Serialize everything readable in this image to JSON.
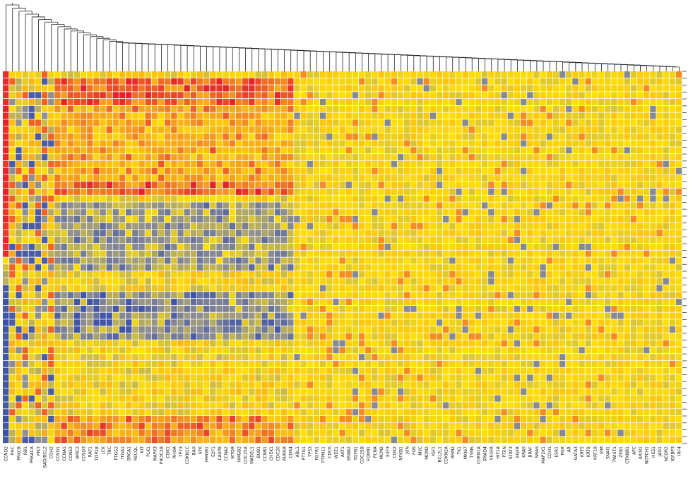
{
  "chart_data": {
    "type": "heatmap",
    "title": "",
    "xlabel": "",
    "ylabel": "",
    "dendrogram": "top",
    "color_scale": {
      "min_color": "#3a4fa8",
      "low_color": "#8f8f8f",
      "mid_color": "#ffe000",
      "high_color": "#f59a1e",
      "max_color": "#e8202a"
    },
    "rows": 54,
    "columns": [
      "CCND2",
      "PHC",
      "PRKCB",
      "RB1",
      "PRKACA",
      "PIK3",
      "BAD/BCL2",
      "CDH2",
      "CCND1",
      "CCNA1",
      "CCNE2",
      "BIRC2",
      "CCND3",
      "RAF1",
      "TOP2A",
      "LCK",
      "TNC",
      "PTGS2",
      "ITGA1",
      "BRCA1",
      "RECQL",
      "KIT",
      "PLK1",
      "MAPK3",
      "PIK3C2B",
      "CDK1",
      "RHOA",
      "TP73",
      "CDKN1C",
      "BAX",
      "SYK",
      "HMGB1",
      "E2F1",
      "CASP8",
      "CCNA2",
      "MTOR",
      "HMGB2",
      "CDC25A",
      "MAD2L1",
      "BUB1",
      "CCNB1",
      "CHEK1",
      "CDC20",
      "AURKA",
      "CDK4",
      "ABL1",
      "PTTG1",
      "TP53",
      "FGFR1",
      "PTPN11",
      "CDC6",
      "WEE1",
      "AKT1",
      "ERBB2",
      "TGFB1",
      "CDC25B",
      "FOXM1",
      "PCNA",
      "MCM2",
      "E2F3",
      "CDK2",
      "NFKB1",
      "JUN",
      "FOS",
      "MYC",
      "MDM2",
      "IGF1",
      "BCL2L1",
      "CDKN2A",
      "RRM2",
      "TK1",
      "MKI67",
      "TYMS",
      "CDKN1A",
      "SMAD4",
      "VEGFA",
      "HIF1A",
      "PTEN",
      "STAT3",
      "EGFR",
      "KRAS",
      "BRAF",
      "NRAS",
      "MAP2K1",
      "CDH1",
      "ESR1",
      "PGR",
      "AR",
      "GATA3",
      "KRT5",
      "KRT8",
      "KRT18",
      "VIM",
      "SNAI1",
      "TWIST1",
      "ZEB1",
      "CTNNB1",
      "APC",
      "AXIN1",
      "NOTCH1",
      "HES1",
      "JAG1",
      "NCOR2",
      "IGFBP3",
      "IRF4"
    ],
    "x_tick_labels": [
      "CCND2",
      "PHC",
      "PRKCB",
      "RB1",
      "PRKACA",
      "PIK3",
      "BAD/BCL2",
      "CDH2",
      "CCND1",
      "CCNA1",
      "CCNE2",
      "BIRC2",
      "CCND3",
      "RAF1",
      "TOP2A",
      "LCK",
      "TNC",
      "PTGS2",
      "ITGA1",
      "BRCA1",
      "RECQL",
      "KIT",
      "PLK1",
      "MAPK3",
      "PIK3C2B",
      "CDK1",
      "RHOA",
      "TP73",
      "CDKN1C",
      "BAX",
      "SYK",
      "HMGB1",
      "E2F1",
      "CASP8",
      "CCNA2",
      "MTOR",
      "HMGB2",
      "CDC25A",
      "MAD2L1",
      "BUB1",
      "CCNB1",
      "CHEK1",
      "CDC20",
      "AURKA",
      "CDK4",
      "ABL1",
      "PTTG1",
      "TP53",
      "FGFR1",
      "PTPN11",
      "CDC6",
      "WEE1",
      "AKT1",
      "ERBB2",
      "TGFB1",
      "CDC25B",
      "FOXM1",
      "PCNA",
      "MCM2",
      "E2F3",
      "CDK2",
      "NFKB1",
      "JUN",
      "FOS",
      "MYC",
      "MDM2",
      "IGF1",
      "BCL2L1",
      "CDKN2A",
      "RRM2",
      "TK1",
      "MKI67",
      "TYMS",
      "CDKN1A",
      "SMAD4",
      "VEGFA",
      "HIF1A",
      "PTEN",
      "STAT3",
      "EGFR",
      "KRAS",
      "BRAF",
      "NRAS",
      "MAP2K1",
      "CDH1",
      "ESR1",
      "PGR",
      "AR",
      "GATA3",
      "KRT5",
      "KRT8",
      "KRT18",
      "VIM",
      "SNAI1",
      "TWIST1",
      "ZEB1",
      "CTNNB1",
      "APC",
      "AXIN1",
      "NOTCH1",
      "HES1",
      "JAG1",
      "NCOR2",
      "IGFBP3",
      "IRF4"
    ]
  }
}
